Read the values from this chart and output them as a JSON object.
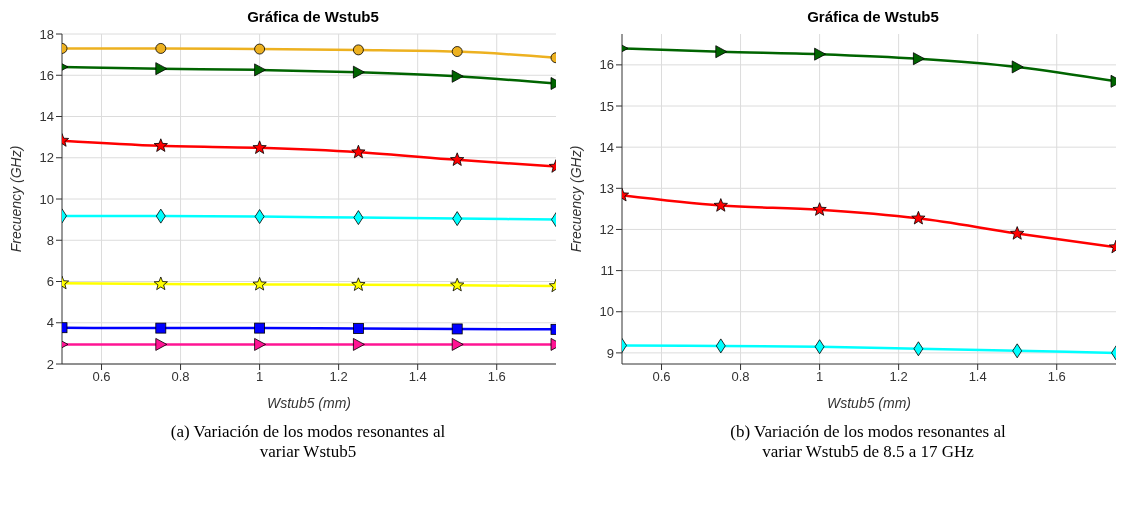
{
  "chart_data": [
    {
      "type": "line",
      "title": "Gráfica de Wstub5",
      "xlabel": "Wstub5 (mm)",
      "ylabel": "Frecuency (GHz)",
      "x": [
        0.5,
        0.75,
        1,
        1.25,
        1.5,
        1.75
      ],
      "xlim": [
        0.5,
        1.75
      ],
      "xticks": [
        0.6,
        0.8,
        1,
        1.2,
        1.4,
        1.6
      ],
      "ylim": [
        2,
        18
      ],
      "yticks": [
        2,
        4,
        6,
        8,
        10,
        12,
        14,
        16,
        18
      ],
      "grid": true,
      "line_style": "solid",
      "annotations": [
        "(a) Variación de los modos resonantes al variar Wstub5"
      ],
      "series": [
        {
          "color": "#edb120",
          "marker": "circle",
          "values": [
            17.3,
            17.3,
            17.27,
            17.23,
            17.15,
            16.85
          ]
        },
        {
          "color": "#006400",
          "marker": "triangle",
          "values": [
            16.4,
            16.32,
            16.26,
            16.15,
            15.95,
            15.6
          ]
        },
        {
          "color": "#ff0000",
          "marker": "star",
          "values": [
            12.83,
            12.58,
            12.48,
            12.27,
            11.9,
            11.57
          ]
        },
        {
          "color": "#00ffff",
          "marker": "diamond",
          "values": [
            9.18,
            9.17,
            9.15,
            9.1,
            9.05,
            9.0
          ]
        },
        {
          "color": "#ffff00",
          "marker": "star",
          "values": [
            5.92,
            5.88,
            5.86,
            5.84,
            5.82,
            5.78
          ]
        },
        {
          "color": "#0000ff",
          "marker": "square",
          "values": [
            3.76,
            3.74,
            3.74,
            3.72,
            3.7,
            3.68
          ]
        },
        {
          "color": "#ff1493",
          "marker": "triangle",
          "values": [
            2.95,
            2.95,
            2.95,
            2.95,
            2.95,
            2.95
          ]
        }
      ]
    },
    {
      "type": "line",
      "title": "Gráfica de Wstub5",
      "xlabel": "Wstub5 (mm)",
      "ylabel": "Frecuency (GHz)",
      "x": [
        0.5,
        0.75,
        1,
        1.25,
        1.5,
        1.75
      ],
      "xlim": [
        0.5,
        1.75
      ],
      "xticks": [
        0.6,
        0.8,
        1,
        1.2,
        1.4,
        1.6
      ],
      "ylim": [
        8.73,
        16.75
      ],
      "yticks": [
        9,
        10,
        11,
        12,
        13,
        14,
        15,
        16
      ],
      "grid": true,
      "line_style": "solid",
      "annotations": [
        "(b) Variación de los modos resonantes al variar Wstub5 de 8.5 a 17 GHz"
      ],
      "series": [
        {
          "color": "#006400",
          "marker": "triangle",
          "values": [
            16.4,
            16.32,
            16.26,
            16.15,
            15.95,
            15.6
          ]
        },
        {
          "color": "#ff0000",
          "marker": "star",
          "values": [
            12.83,
            12.58,
            12.48,
            12.27,
            11.9,
            11.57
          ]
        },
        {
          "color": "#00ffff",
          "marker": "diamond",
          "values": [
            9.18,
            9.17,
            9.15,
            9.1,
            9.05,
            9.0
          ]
        }
      ]
    }
  ]
}
